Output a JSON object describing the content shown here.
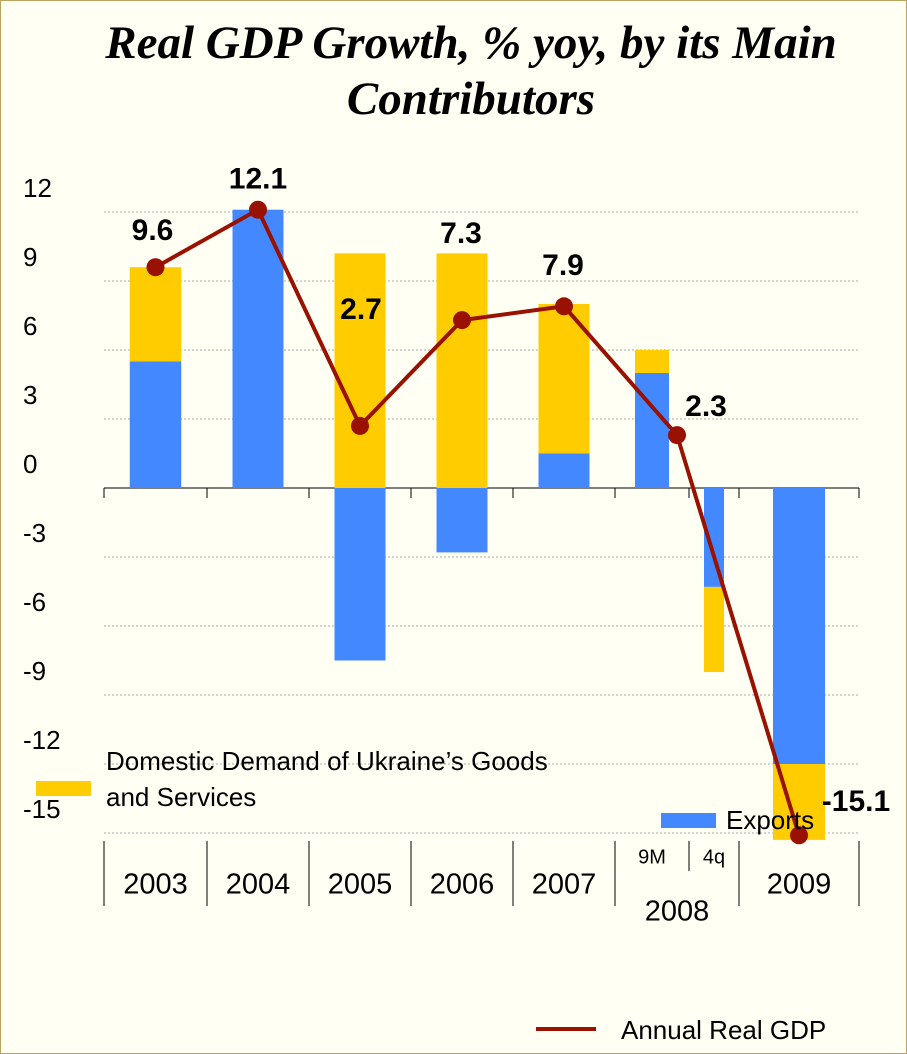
{
  "chart_data": {
    "type": "bar",
    "title": "Real GDP Growth, % yoy, by its Main Contributors",
    "categories": [
      "2003",
      "2004",
      "2005",
      "2006",
      "2007",
      "2008",
      "2009"
    ],
    "subcategories": [
      null,
      null,
      null,
      null,
      null,
      [
        "9M",
        "4q"
      ],
      null
    ],
    "series": [
      {
        "name": "Domestic Demand of Ukraine’s Goods and Services",
        "color": "#ffcc00",
        "values": [
          4.1,
          0,
          10.2,
          10.2,
          6.5,
          [
            1.0,
            -3.7
          ],
          -3.3
        ]
      },
      {
        "name": "Exports",
        "color": "#4488ff",
        "values": [
          5.5,
          12.1,
          -7.5,
          -2.8,
          1.5,
          [
            5.0,
            -4.3
          ],
          -12.0
        ]
      },
      {
        "name": "Annual Real GDP",
        "type": "line",
        "color": "#991100",
        "values": [
          9.6,
          12.1,
          2.7,
          7.3,
          7.9,
          2.3,
          -15.1
        ]
      }
    ],
    "ylim": [
      -15,
      12
    ],
    "yticks": [
      12,
      9,
      6,
      3,
      0,
      -3,
      -6,
      -9,
      -12,
      -15
    ],
    "grid": true
  }
}
